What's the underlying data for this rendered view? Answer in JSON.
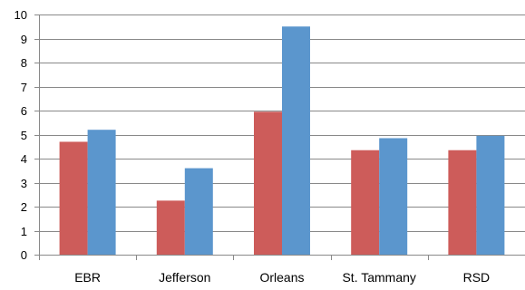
{
  "chart_data": {
    "type": "bar",
    "categories": [
      "EBR",
      "Jefferson",
      "Orleans",
      "St. Tammany",
      "RSD"
    ],
    "series": [
      {
        "values": [
          4.7,
          2.25,
          5.95,
          4.35,
          4.35
        ],
        "color": "#cd5c5a"
      },
      {
        "values": [
          5.2,
          3.6,
          9.5,
          4.85,
          4.95
        ],
        "color": "#5b96cd"
      }
    ],
    "yticks": [
      "0",
      "1",
      "2",
      "3",
      "4",
      "5",
      "6",
      "7",
      "8",
      "9",
      "10"
    ],
    "ylim": [
      0,
      10
    ],
    "grid": true,
    "legend": "none",
    "title": "",
    "xlabel": "",
    "ylabel": ""
  }
}
